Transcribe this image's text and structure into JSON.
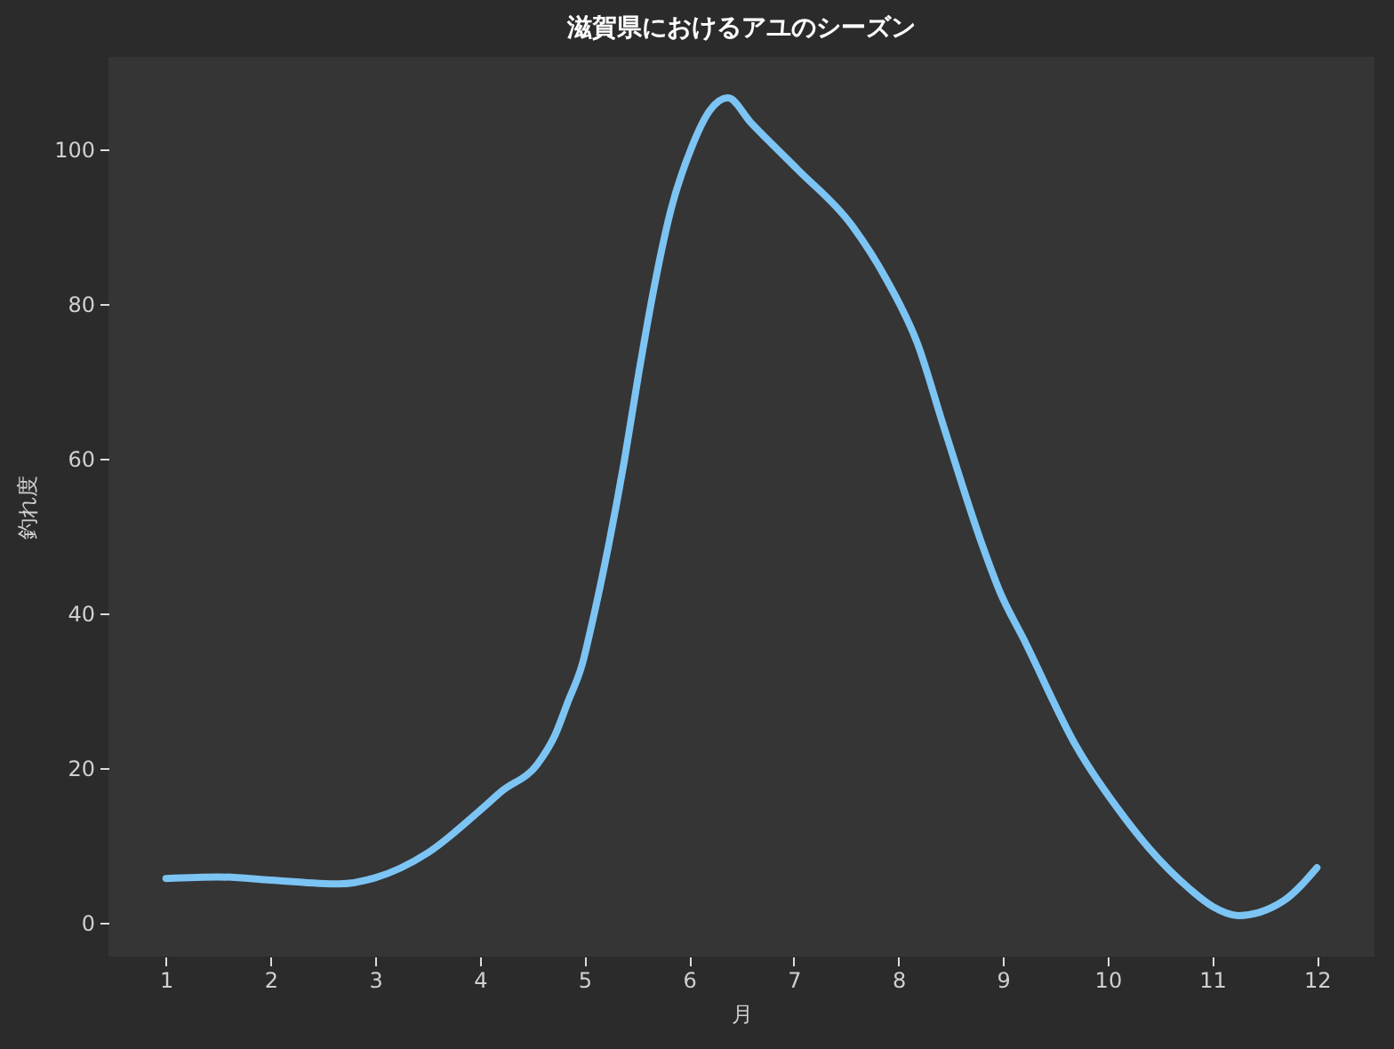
{
  "chart_data": {
    "type": "line",
    "title": "滋賀県におけるアユのシーズン",
    "xlabel": "月",
    "ylabel": "釣れ度",
    "x": [
      1,
      1.5,
      2,
      2.65,
      3,
      3.5,
      4,
      4.21,
      4.55,
      4.72,
      4.84,
      4.98,
      5.06,
      5.23,
      5.38,
      5.52,
      5.65,
      5.82,
      6.03,
      6.2,
      6.37,
      6.59,
      7.04,
      7.55,
      7.89,
      8.18,
      8.43,
      8.8,
      8.97,
      9.2,
      9.7,
      10.16,
      10.39,
      10.78,
      11,
      11.25,
      11.68,
      12
    ],
    "series": [
      {
        "color": "#7cc4f4",
        "values": [
          5.7,
          5.9,
          5.5,
          5.0,
          5.8,
          9.0,
          14.5,
          17,
          20.5,
          24.3,
          28.5,
          33.5,
          38,
          48.8,
          59.7,
          71.2,
          81.1,
          91.9,
          100.5,
          105.1,
          106.7,
          103.5,
          97.4,
          90.3,
          83.1,
          75,
          64.3,
          48.9,
          42.8,
          36.6,
          22.8,
          13.6,
          9.7,
          4.4,
          2.1,
          0.9,
          2.8,
          7.1
        ]
      }
    ],
    "xlim": [
      0.45,
      12.55
    ],
    "ylim": [
      -4.4,
      112
    ],
    "xticks": [
      1,
      2,
      3,
      4,
      5,
      6,
      7,
      8,
      9,
      10,
      11,
      12
    ],
    "yticks": [
      0,
      20,
      40,
      60,
      80,
      100
    ],
    "grid": false,
    "line_style": "solid"
  }
}
